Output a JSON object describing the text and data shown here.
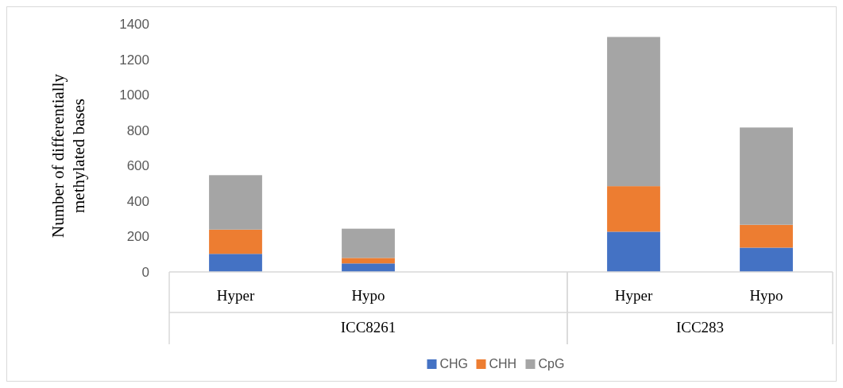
{
  "chart_data": {
    "type": "bar",
    "stacked": true,
    "ylabel": "Number of differentially methylated bases",
    "categories": [
      "Hyper",
      "Hypo",
      null,
      "Hyper",
      "Hypo"
    ],
    "annotations": [
      "ICC8261",
      "ICC283"
    ],
    "series": [
      {
        "name": "CHG",
        "color": "#4472c4",
        "values": [
          102,
          48,
          null,
          227,
          137
        ]
      },
      {
        "name": "CHH",
        "color": "#ed7d31",
        "values": [
          137,
          31,
          null,
          257,
          129
        ]
      },
      {
        "name": "CpG",
        "color": "#a5a5a5",
        "values": [
          307,
          165,
          null,
          842,
          549
        ]
      }
    ],
    "ylim": [
      0,
      1400
    ],
    "yticks": [
      0,
      200,
      400,
      600,
      800,
      1000,
      1200,
      1400
    ],
    "grid": false,
    "legend": "bottom"
  }
}
